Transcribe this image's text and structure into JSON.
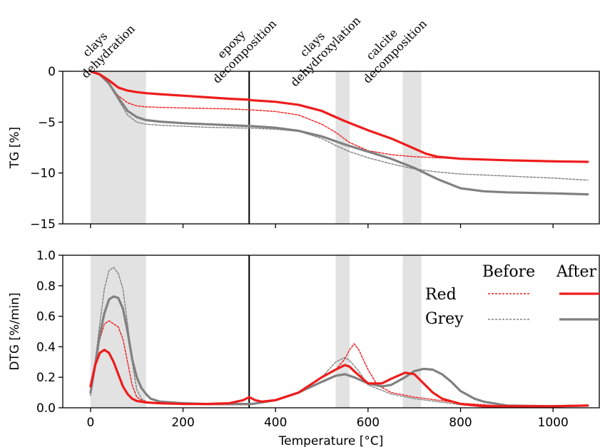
{
  "chart_data": {
    "type": "line",
    "xlabel": "Temperature [°C]",
    "xlim": [
      -60,
      1100
    ],
    "xticks": [
      0,
      200,
      400,
      600,
      800,
      1000
    ],
    "colors": {
      "red": "#ee1c1c",
      "grey": "#808080",
      "band": "#e2e2e2",
      "marker": "#000000"
    },
    "shaded_ranges": [
      [
        0,
        120
      ],
      [
        530,
        560
      ],
      [
        675,
        715
      ]
    ],
    "vertical_line": 343,
    "annotations": [
      {
        "x": 20,
        "lines": [
          "clays",
          "dehydration"
        ]
      },
      {
        "x": 315,
        "lines": [
          "epoxy",
          "decomposition"
        ]
      },
      {
        "x": 490,
        "lines": [
          "clays",
          "dehydroxylation"
        ]
      },
      {
        "x": 640,
        "lines": [
          "calcite",
          "decomposition"
        ]
      }
    ],
    "legend": {
      "col_before": "Before",
      "col_after": "After",
      "row_red": "Red",
      "row_grey": "Grey"
    },
    "panels": [
      {
        "ylabel": "TG [%]",
        "ylim": [
          -15,
          0
        ],
        "yticks": [
          0,
          -5,
          -10,
          -15
        ],
        "ytick_labels": [
          "0",
          "−5",
          "−10",
          "−15"
        ],
        "series": [
          {
            "color": "grey",
            "style": "dashed",
            "x": [
              0,
              20,
              40,
              60,
              80,
              100,
              120,
              150,
              200,
              250,
              300,
              350,
              400,
              450,
              500,
              530,
              560,
              600,
              650,
              700,
              750,
              800,
              900,
              1000,
              1075
            ],
            "y": [
              0,
              -0.4,
              -1.3,
              -2.8,
              -4.3,
              -5.0,
              -5.2,
              -5.3,
              -5.4,
              -5.5,
              -5.55,
              -5.6,
              -5.7,
              -5.9,
              -6.6,
              -7.3,
              -7.9,
              -8.5,
              -9.1,
              -9.6,
              -9.9,
              -10.1,
              -10.3,
              -10.5,
              -10.7
            ]
          },
          {
            "color": "red",
            "style": "dashed",
            "x": [
              0,
              20,
              40,
              60,
              80,
              100,
              120,
              150,
              200,
              250,
              300,
              350,
              400,
              450,
              500,
              530,
              560,
              600,
              650,
              700,
              750,
              800,
              900,
              1000,
              1075
            ],
            "y": [
              0,
              -0.4,
              -1.3,
              -2.4,
              -3.1,
              -3.4,
              -3.5,
              -3.55,
              -3.6,
              -3.65,
              -3.7,
              -3.8,
              -3.95,
              -4.3,
              -5.2,
              -6.0,
              -7.0,
              -7.8,
              -8.2,
              -8.4,
              -8.5,
              -8.6,
              -8.7,
              -8.8,
              -8.9
            ]
          },
          {
            "color": "grey",
            "style": "solid",
            "x": [
              0,
              20,
              40,
              60,
              80,
              100,
              120,
              150,
              200,
              250,
              300,
              350,
              400,
              450,
              500,
              550,
              600,
              650,
              700,
              750,
              800,
              850,
              900,
              1000,
              1075
            ],
            "y": [
              0,
              -0.3,
              -1.2,
              -2.6,
              -3.9,
              -4.5,
              -4.8,
              -4.95,
              -5.1,
              -5.2,
              -5.3,
              -5.4,
              -5.55,
              -5.85,
              -6.4,
              -7.2,
              -7.9,
              -8.6,
              -9.5,
              -10.6,
              -11.5,
              -11.8,
              -11.9,
              -12.0,
              -12.1
            ]
          },
          {
            "color": "red",
            "style": "solid",
            "x": [
              0,
              20,
              40,
              60,
              80,
              100,
              120,
              150,
              200,
              250,
              300,
              343,
              350,
              400,
              450,
              500,
              550,
              600,
              650,
              700,
              725,
              750,
              800,
              900,
              1000,
              1075
            ],
            "y": [
              0,
              -0.3,
              -0.9,
              -1.6,
              -1.9,
              -2.05,
              -2.15,
              -2.25,
              -2.4,
              -2.55,
              -2.7,
              -2.8,
              -2.85,
              -3.0,
              -3.3,
              -3.9,
              -4.9,
              -5.8,
              -6.6,
              -7.6,
              -8.1,
              -8.4,
              -8.6,
              -8.75,
              -8.85,
              -8.9
            ]
          }
        ]
      },
      {
        "ylabel": "DTG [%/min]",
        "ylim": [
          0,
          1.0
        ],
        "yticks": [
          0,
          0.2,
          0.4,
          0.6,
          0.8,
          1.0
        ],
        "ytick_labels": [
          "0.0",
          "0.2",
          "0.4",
          "0.6",
          "0.8",
          "1.0"
        ],
        "series": [
          {
            "color": "grey",
            "style": "dashed",
            "x": [
              0,
              10,
              20,
              30,
              40,
              50,
              60,
              70,
              80,
              90,
              100,
              110,
              120,
              150,
              200,
              250,
              300,
              340,
              350,
              400,
              450,
              500,
              530,
              550,
              560,
              580,
              600,
              650,
              700,
              750,
              800,
              850,
              900,
              1000,
              1075
            ],
            "y": [
              0.08,
              0.3,
              0.55,
              0.78,
              0.9,
              0.92,
              0.88,
              0.78,
              0.55,
              0.3,
              0.12,
              0.06,
              0.04,
              0.03,
              0.025,
              0.02,
              0.02,
              0.02,
              0.025,
              0.05,
              0.1,
              0.2,
              0.3,
              0.33,
              0.31,
              0.24,
              0.15,
              0.09,
              0.06,
              0.04,
              0.02,
              0.015,
              0.01,
              0.01,
              0.015
            ]
          },
          {
            "color": "red",
            "style": "dashed",
            "x": [
              0,
              10,
              20,
              30,
              40,
              50,
              60,
              70,
              80,
              90,
              100,
              110,
              120,
              150,
              200,
              250,
              300,
              340,
              350,
              400,
              450,
              500,
              530,
              550,
              560,
              570,
              580,
              600,
              620,
              650,
              700,
              750,
              800,
              850,
              900,
              1000,
              1075
            ],
            "y": [
              0.1,
              0.28,
              0.45,
              0.55,
              0.57,
              0.55,
              0.53,
              0.45,
              0.3,
              0.15,
              0.07,
              0.05,
              0.04,
              0.03,
              0.025,
              0.02,
              0.02,
              0.02,
              0.025,
              0.05,
              0.1,
              0.2,
              0.25,
              0.32,
              0.38,
              0.42,
              0.38,
              0.25,
              0.15,
              0.1,
              0.07,
              0.05,
              0.03,
              0.02,
              0.01,
              0.01,
              0.015
            ]
          },
          {
            "color": "grey",
            "style": "solid",
            "x": [
              0,
              10,
              20,
              30,
              40,
              50,
              60,
              70,
              80,
              90,
              100,
              110,
              120,
              130,
              150,
              200,
              250,
              300,
              343,
              350,
              400,
              450,
              500,
              530,
              550,
              570,
              600,
              630,
              650,
              680,
              700,
              720,
              740,
              760,
              780,
              800,
              830,
              850,
              900,
              1000,
              1075
            ],
            "y": [
              0.1,
              0.28,
              0.48,
              0.62,
              0.71,
              0.73,
              0.72,
              0.65,
              0.5,
              0.32,
              0.2,
              0.13,
              0.09,
              0.06,
              0.04,
              0.03,
              0.025,
              0.025,
              0.025,
              0.025,
              0.05,
              0.1,
              0.17,
              0.21,
              0.22,
              0.2,
              0.16,
              0.14,
              0.15,
              0.2,
              0.24,
              0.255,
              0.25,
              0.22,
              0.17,
              0.11,
              0.06,
              0.04,
              0.015,
              0.01,
              0.015
            ]
          },
          {
            "color": "red",
            "style": "solid",
            "x": [
              0,
              10,
              20,
              30,
              40,
              50,
              60,
              70,
              80,
              90,
              100,
              110,
              120,
              150,
              200,
              250,
              300,
              330,
              343,
              356,
              370,
              400,
              450,
              500,
              530,
              550,
              560,
              570,
              600,
              630,
              650,
              680,
              700,
              720,
              740,
              760,
              800,
              850,
              900,
              1000,
              1075
            ],
            "y": [
              0.14,
              0.28,
              0.36,
              0.38,
              0.36,
              0.3,
              0.22,
              0.14,
              0.09,
              0.06,
              0.045,
              0.04,
              0.035,
              0.03,
              0.025,
              0.025,
              0.03,
              0.05,
              0.07,
              0.05,
              0.04,
              0.05,
              0.1,
              0.2,
              0.25,
              0.28,
              0.27,
              0.24,
              0.16,
              0.16,
              0.19,
              0.23,
              0.22,
              0.16,
              0.1,
              0.06,
              0.025,
              0.01,
              0.01,
              0.01,
              0.015
            ]
          }
        ]
      }
    ]
  }
}
